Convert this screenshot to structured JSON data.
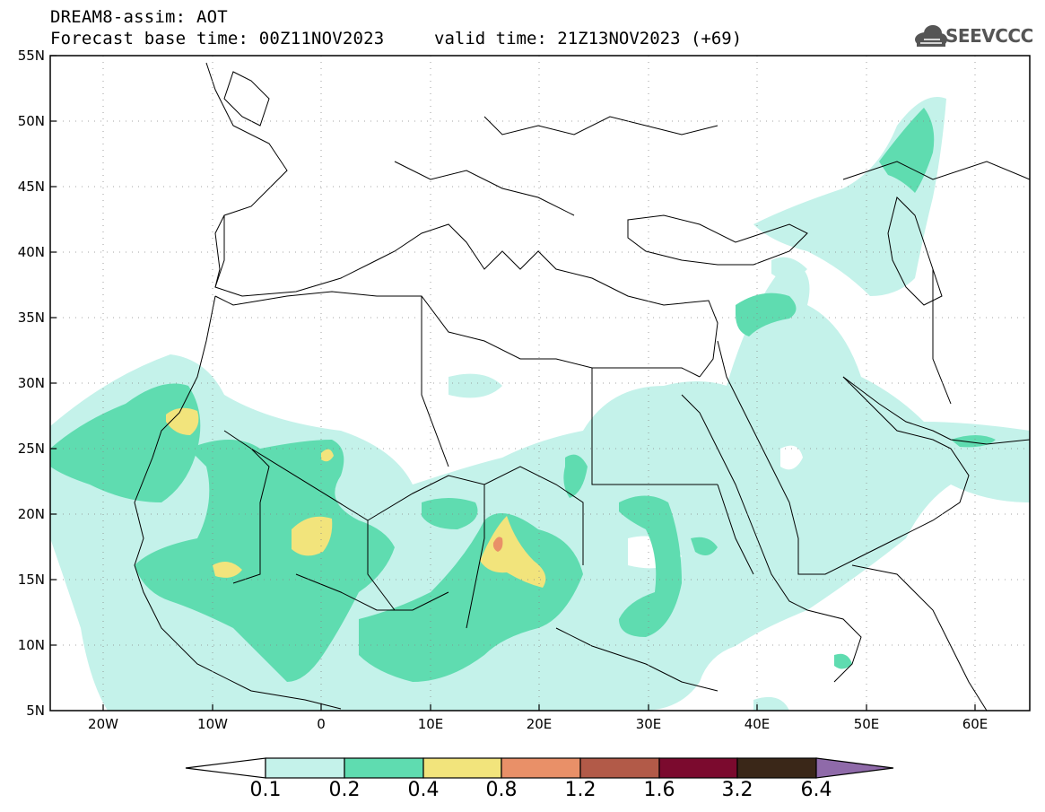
{
  "header": {
    "title": "DREAM8-assim: AOT",
    "base_time": "Forecast base time: 00Z11NOV2023",
    "valid_time": "valid time: 21Z13NOV2023 (+69)"
  },
  "logo": {
    "text": "SEEVCCC",
    "icon": "cloud-icon"
  },
  "map": {
    "lat_labels": [
      "55N",
      "50N",
      "45N",
      "40N",
      "35N",
      "30N",
      "25N",
      "20N",
      "15N",
      "10N",
      "5N"
    ],
    "lon_labels": [
      "20W",
      "10W",
      "0",
      "10E",
      "20E",
      "30E",
      "40E",
      "50E",
      "60E"
    ],
    "border_color": "#000000",
    "gridline_style": "dotted"
  },
  "colorbar": {
    "labels": [
      "0.1",
      "0.2",
      "0.4",
      "0.8",
      "1.2",
      "1.6",
      "3.2",
      "6.4"
    ],
    "colors": [
      "#ffffff",
      "#c4f2ea",
      "#5fdcb0",
      "#f2e47c",
      "#e99068",
      "#b25a48",
      "#7b0a2e",
      "#3a2718",
      "#8f6aa9"
    ]
  }
}
